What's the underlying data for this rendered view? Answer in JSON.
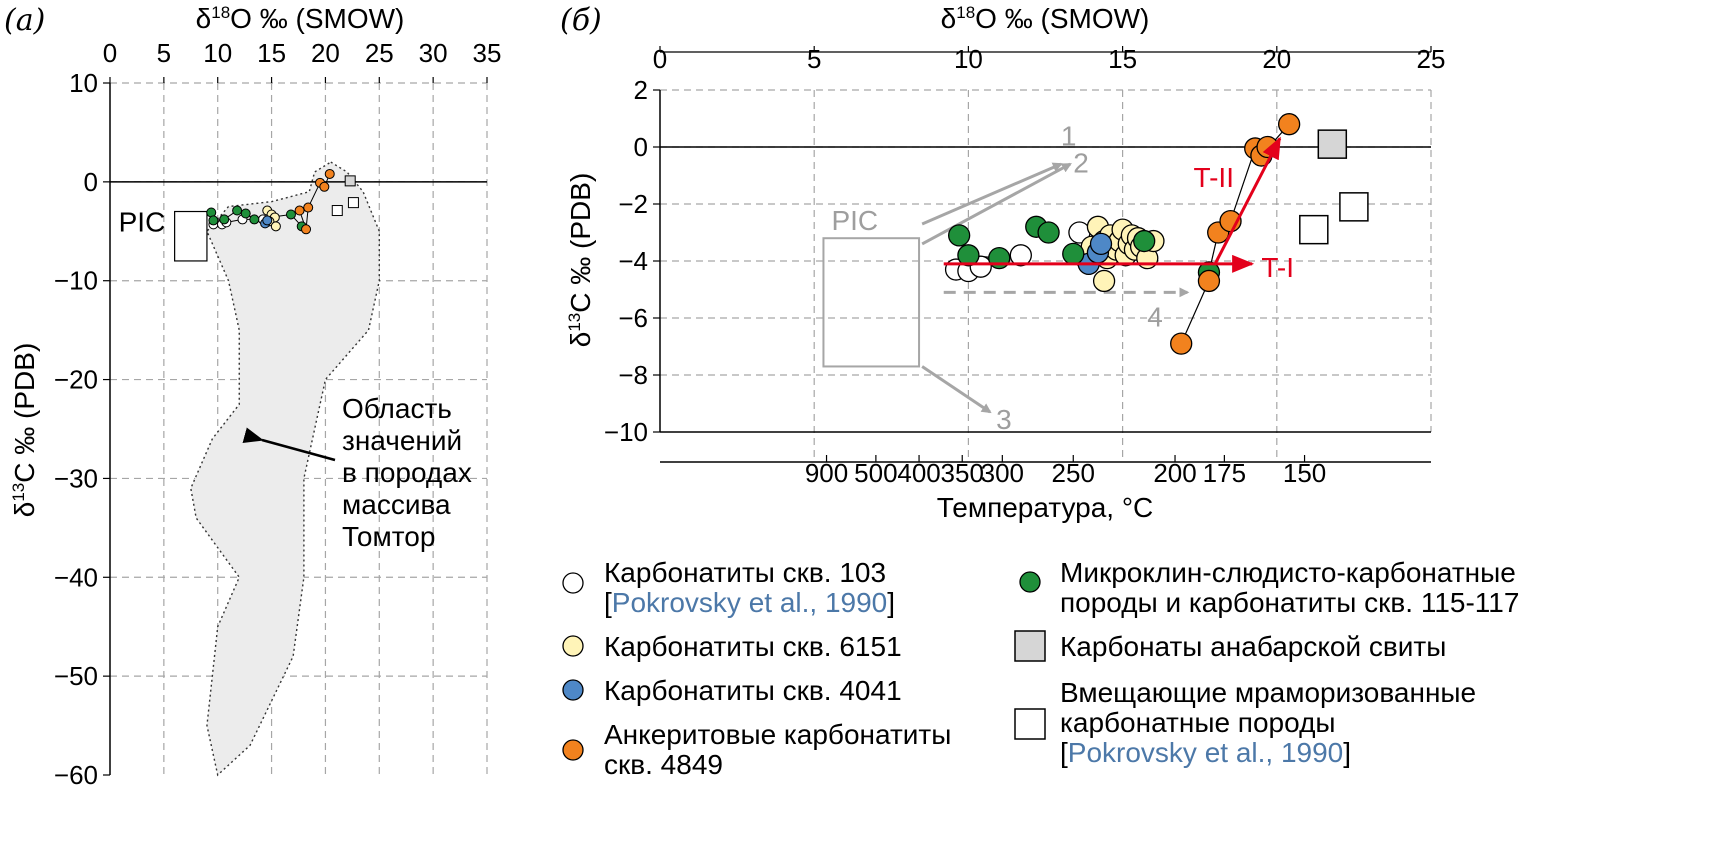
{
  "chart_data": [
    {
      "panel_label": "(а)",
      "type": "scatter",
      "x_axis": {
        "title_prefix": "δ",
        "title_sup": "18",
        "title_suffix": "O ‰ (SMOW)",
        "position": "top",
        "range": [
          0,
          35
        ],
        "ticks": [
          0,
          5,
          10,
          15,
          20,
          25,
          30,
          35
        ]
      },
      "y_axis": {
        "title_prefix": "δ",
        "title_sup": "13",
        "title_suffix": "C ‰ (PDB)",
        "range": [
          -60,
          10
        ],
        "ticks": [
          10,
          0,
          -10,
          -20,
          -30,
          -40,
          -50,
          -60
        ],
        "tick_labels": [
          "10",
          "0",
          "−10",
          "−20",
          "−30",
          "−40",
          "−50",
          "−60"
        ]
      },
      "grid": true,
      "pic_label": "PIC",
      "pic_box": {
        "x": [
          6,
          9
        ],
        "y": [
          -8,
          -3
        ]
      },
      "region_annotation": [
        "Область",
        "значений",
        "в породах",
        "массива",
        "Томтор"
      ],
      "region_polygon": [
        [
          20.5,
          2
        ],
        [
          22,
          1
        ],
        [
          23.5,
          -1
        ],
        [
          25,
          -5
        ],
        [
          25,
          -10
        ],
        [
          24,
          -15
        ],
        [
          20,
          -20
        ],
        [
          18,
          -30
        ],
        [
          18,
          -40
        ],
        [
          17,
          -48
        ],
        [
          13,
          -57
        ],
        [
          10,
          -60
        ],
        [
          9,
          -55
        ],
        [
          10,
          -45
        ],
        [
          12,
          -40
        ],
        [
          8,
          -34
        ],
        [
          7.5,
          -31
        ],
        [
          9.5,
          -26
        ],
        [
          12,
          -22.5
        ],
        [
          12,
          -15
        ],
        [
          11,
          -10
        ],
        [
          9,
          -5
        ],
        [
          11,
          -2.5
        ],
        [
          15,
          -2
        ],
        [
          18.5,
          -1
        ],
        [
          19,
          1
        ]
      ],
      "series": [
        {
          "name": "Карбонатиты скв. 103",
          "color": "#ffffff",
          "points": [
            [
              9.6,
              -4.3
            ],
            [
              10.4,
              -4.3
            ],
            [
              10.8,
              -4.1
            ],
            [
              12.3,
              -3.8
            ],
            [
              14.2,
              -3.8
            ]
          ]
        },
        {
          "name": "Карбонатиты скв. 6151",
          "color": "#fff4b8",
          "points": [
            [
              14.6,
              -2.9
            ],
            [
              15.0,
              -3.3
            ],
            [
              15.3,
              -3.6
            ],
            [
              14.8,
              -4.0
            ],
            [
              15.4,
              -4.5
            ]
          ]
        },
        {
          "name": "Карбонатиты скв. 4041",
          "color": "#4e88c7",
          "points": [
            [
              14.4,
              -4.2
            ],
            [
              14.6,
              -3.9
            ]
          ]
        },
        {
          "name": "Микроклин-слюдисто-карбонатные породы и карбонатиты скв. 115-117",
          "color": "#1f8f3a",
          "points": [
            [
              9.4,
              -3.1
            ],
            [
              9.6,
              -3.9
            ],
            [
              10.6,
              -3.8
            ],
            [
              11.8,
              -2.9
            ],
            [
              12.6,
              -3.2
            ],
            [
              13.4,
              -3.8
            ],
            [
              16.8,
              -3.3
            ],
            [
              17.8,
              -4.5
            ]
          ]
        },
        {
          "name": "Анкеритовые карбонатиты скв. 4849",
          "color": "#f2821e",
          "points": [
            [
              18.2,
              -4.8
            ],
            [
              17.6,
              -2.9
            ],
            [
              18.4,
              -2.6
            ],
            [
              19.5,
              -0.1
            ],
            [
              19.9,
              -0.5
            ],
            [
              20.4,
              0.8
            ]
          ]
        },
        {
          "name": "Карбонаты анабарской свиты",
          "color": "#d6d6d6",
          "points": [
            [
              22.3,
              0.1
            ]
          ]
        },
        {
          "name": "Вмещающие мраморизованные карбонатные породы",
          "color": "#ffffff",
          "points": [
            [
              21.1,
              -2.9
            ],
            [
              22.6,
              -2.1
            ]
          ]
        }
      ]
    },
    {
      "panel_label": "(б)",
      "type": "scatter",
      "x_axis": {
        "title_prefix": "δ",
        "title_sup": "18",
        "title_suffix": "O ‰ (SMOW)",
        "position": "top",
        "range": [
          0,
          25
        ],
        "ticks": [
          0,
          5,
          10,
          15,
          20,
          25
        ]
      },
      "y_axis": {
        "title_prefix": "δ",
        "title_sup": "13",
        "title_suffix": "C ‰ (PDB)",
        "range": [
          -10,
          2
        ],
        "ticks": [
          2,
          0,
          -2,
          -4,
          -6,
          -8,
          -10
        ],
        "tick_labels": [
          "2",
          "0",
          "−2",
          "−4",
          "−6",
          "−8",
          "−10"
        ]
      },
      "secondary_x_axis": {
        "title": "Температура, °C",
        "ticks": [
          {
            "label": "900",
            "x": 5.4
          },
          {
            "label": "500",
            "x": 7.0
          },
          {
            "label": "400",
            "x": 8.4
          },
          {
            "label": "350",
            "x": 9.8
          },
          {
            "label": "300",
            "x": 11.1
          },
          {
            "label": "250",
            "x": 13.4
          },
          {
            "label": "200",
            "x": 16.7
          },
          {
            "label": "175",
            "x": 18.3
          },
          {
            "label": "150",
            "x": 20.9
          }
        ]
      },
      "grid": true,
      "pic_label": "PIC",
      "pic_box": {
        "x": [
          5.3,
          8.4
        ],
        "y": [
          -7.7,
          -3.2
        ]
      },
      "trend_labels": [
        "1",
        "2",
        "3",
        "4",
        "T-I",
        "T-II"
      ],
      "series": [
        {
          "name": "Карбонатиты скв. 103",
          "color": "#ffffff",
          "points": [
            [
              9.6,
              -4.3
            ],
            [
              10.0,
              -4.35
            ],
            [
              10.4,
              -4.2
            ],
            [
              11.7,
              -3.8
            ],
            [
              13.6,
              -3.0
            ],
            [
              13.8,
              -3.9
            ]
          ]
        },
        {
          "name": "Карбонатиты скв. 6151",
          "color": "#fff4b8",
          "points": [
            [
              14.0,
              -3.5
            ],
            [
              14.2,
              -2.8
            ],
            [
              14.4,
              -3.3
            ],
            [
              14.5,
              -3.9
            ],
            [
              14.6,
              -3.1
            ],
            [
              14.8,
              -3.6
            ],
            [
              14.9,
              -3.3
            ],
            [
              15.0,
              -2.9
            ],
            [
              15.1,
              -3.8
            ],
            [
              15.2,
              -3.4
            ],
            [
              15.3,
              -3.1
            ],
            [
              15.4,
              -3.6
            ],
            [
              15.5,
              -3.2
            ],
            [
              15.6,
              -3.5
            ],
            [
              15.8,
              -3.9
            ],
            [
              16.0,
              -3.3
            ],
            [
              14.4,
              -4.7
            ]
          ]
        },
        {
          "name": "Карбонатиты скв. 4041",
          "color": "#4e88c7",
          "points": [
            [
              13.9,
              -4.1
            ],
            [
              14.2,
              -3.7
            ],
            [
              14.3,
              -3.4
            ]
          ]
        },
        {
          "name": "Микроклин-слюдисто-карбонатные породы и карбонатиты скв. 115-117",
          "color": "#1f8f3a",
          "points": [
            [
              9.7,
              -3.1
            ],
            [
              10.0,
              -3.8
            ],
            [
              11.0,
              -3.9
            ],
            [
              12.2,
              -2.8
            ],
            [
              12.6,
              -3.0
            ],
            [
              13.4,
              -3.75
            ],
            [
              15.7,
              -3.3
            ],
            [
              17.8,
              -4.4
            ]
          ]
        },
        {
          "name": "Анкеритовые карбонатиты скв. 4849",
          "color": "#f2821e",
          "points": [
            [
              16.9,
              -6.9
            ],
            [
              17.8,
              -4.7
            ],
            [
              18.1,
              -3.0
            ],
            [
              18.5,
              -2.6
            ],
            [
              19.3,
              -0.05
            ],
            [
              19.5,
              -0.3
            ],
            [
              19.7,
              0.0
            ],
            [
              20.4,
              0.8
            ]
          ]
        },
        {
          "name": "Карбонаты анабарской свиты",
          "color": "#d6d6d6",
          "points": [
            [
              21.8,
              0.1
            ]
          ]
        },
        {
          "name": "Вмещающие мраморизованные карбонатные породы",
          "color": "#ffffff",
          "points": [
            [
              21.2,
              -2.9
            ],
            [
              22.5,
              -2.1
            ]
          ]
        }
      ]
    }
  ],
  "legend": [
    {
      "marker": "circle",
      "color": "#ffffff",
      "lines": [
        "Карбонатиты скв. 103"
      ],
      "ref_open": "[",
      "ref": "Pokrovsky et al., 1990",
      "ref_close": "]"
    },
    {
      "marker": "circle",
      "color": "#fff4b8",
      "lines": [
        "Карбонатиты скв. 6151"
      ]
    },
    {
      "marker": "circle",
      "color": "#4e88c7",
      "lines": [
        "Карбонатиты скв. 4041"
      ]
    },
    {
      "marker": "circle",
      "color": "#f2821e",
      "lines": [
        "Анкеритовые карбонатиты",
        "скв. 4849"
      ]
    },
    {
      "marker": "circle",
      "color": "#1f8f3a",
      "lines": [
        "Микроклин-слюдисто-карбонатные",
        "породы и карбонатиты скв. 115-117"
      ]
    },
    {
      "marker": "square",
      "color": "#d6d6d6",
      "lines": [
        "Карбонаты анабарской свиты"
      ]
    },
    {
      "marker": "square",
      "color": "#ffffff",
      "lines": [
        "Вмещающие мраморизованные",
        "карбонатные породы"
      ],
      "ref_open": "[",
      "ref": "Pokrovsky et al., 1990",
      "ref_close": "]"
    }
  ]
}
